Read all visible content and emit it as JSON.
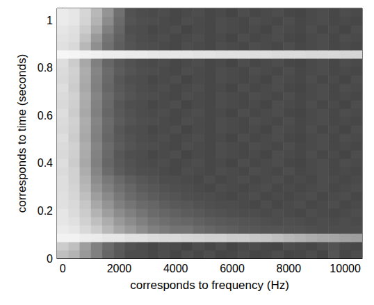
{
  "chart_data": {
    "type": "heatmap",
    "x_label": "corresponds to frequency (Hz)",
    "y_label": "corresponds to time (seconds)",
    "xlim": [
      -200,
      10600
    ],
    "ylim": [
      0,
      1.05
    ],
    "xticks": [
      0,
      2000,
      4000,
      6000,
      8000,
      10000
    ],
    "yticks": [
      0,
      0.2,
      0.4,
      0.6,
      0.8,
      1
    ],
    "grid": false,
    "zlim": [
      0,
      1
    ],
    "x_edges": [
      -200,
      200,
      600,
      1000,
      1400,
      1800,
      2200,
      2600,
      3000,
      3400,
      3800,
      4200,
      4600,
      5000,
      5400,
      5800,
      6200,
      6600,
      7000,
      7400,
      7800,
      8200,
      8600,
      9000,
      9400,
      9800,
      10200,
      10600
    ],
    "y_edges": [
      0,
      0.035,
      0.07,
      0.105,
      0.14,
      0.175,
      0.21,
      0.245,
      0.28,
      0.315,
      0.35,
      0.385,
      0.42,
      0.455,
      0.49,
      0.525,
      0.56,
      0.595,
      0.63,
      0.665,
      0.7,
      0.735,
      0.77,
      0.805,
      0.84,
      0.875,
      0.91,
      0.945,
      0.98,
      1.015,
      1.05
    ],
    "cells": [
      [
        0.75,
        0.7,
        0.6,
        0.5,
        0.4,
        0.35,
        0.3,
        0.3,
        0.28,
        0.3,
        0.27,
        0.3,
        0.28,
        0.3,
        0.27,
        0.28,
        0.3,
        0.27,
        0.28,
        0.3,
        0.27,
        0.28,
        0.3,
        0.27,
        0.33,
        0.28,
        0.3
      ],
      [
        0.8,
        0.75,
        0.62,
        0.5,
        0.42,
        0.36,
        0.32,
        0.3,
        0.28,
        0.3,
        0.29,
        0.27,
        0.3,
        0.28,
        0.3,
        0.27,
        0.29,
        0.3,
        0.28,
        0.27,
        0.3,
        0.29,
        0.28,
        0.3,
        0.32,
        0.29,
        0.28
      ],
      [
        0.95,
        0.95,
        0.93,
        0.92,
        0.9,
        0.9,
        0.88,
        0.88,
        0.86,
        0.85,
        0.85,
        0.84,
        0.83,
        0.82,
        0.82,
        0.8,
        0.8,
        0.78,
        0.77,
        0.75,
        0.72,
        0.7,
        0.68,
        0.66,
        0.65,
        0.63,
        0.62
      ],
      [
        0.92,
        0.9,
        0.85,
        0.8,
        0.72,
        0.65,
        0.6,
        0.55,
        0.5,
        0.48,
        0.45,
        0.45,
        0.42,
        0.4,
        0.38,
        0.37,
        0.35,
        0.34,
        0.33,
        0.33,
        0.32,
        0.32,
        0.31,
        0.3,
        0.3,
        0.3,
        0.3
      ],
      [
        0.9,
        0.88,
        0.82,
        0.75,
        0.68,
        0.6,
        0.55,
        0.5,
        0.46,
        0.43,
        0.41,
        0.4,
        0.38,
        0.36,
        0.35,
        0.34,
        0.33,
        0.32,
        0.31,
        0.3,
        0.31,
        0.3,
        0.29,
        0.3,
        0.29,
        0.3,
        0.29
      ],
      [
        0.9,
        0.86,
        0.8,
        0.7,
        0.62,
        0.55,
        0.5,
        0.46,
        0.42,
        0.4,
        0.38,
        0.36,
        0.35,
        0.33,
        0.32,
        0.31,
        0.3,
        0.3,
        0.29,
        0.3,
        0.29,
        0.28,
        0.3,
        0.29,
        0.28,
        0.29,
        0.3
      ],
      [
        0.88,
        0.85,
        0.78,
        0.66,
        0.58,
        0.5,
        0.46,
        0.42,
        0.4,
        0.37,
        0.35,
        0.34,
        0.32,
        0.31,
        0.3,
        0.3,
        0.29,
        0.28,
        0.3,
        0.28,
        0.29,
        0.3,
        0.28,
        0.29,
        0.3,
        0.28,
        0.29
      ],
      [
        0.88,
        0.84,
        0.75,
        0.62,
        0.54,
        0.47,
        0.42,
        0.39,
        0.36,
        0.34,
        0.33,
        0.31,
        0.3,
        0.3,
        0.29,
        0.28,
        0.29,
        0.3,
        0.28,
        0.29,
        0.28,
        0.29,
        0.3,
        0.28,
        0.29,
        0.3,
        0.28
      ],
      [
        0.87,
        0.83,
        0.72,
        0.58,
        0.5,
        0.44,
        0.4,
        0.36,
        0.34,
        0.32,
        0.31,
        0.3,
        0.29,
        0.28,
        0.3,
        0.29,
        0.28,
        0.29,
        0.3,
        0.28,
        0.29,
        0.28,
        0.29,
        0.3,
        0.28,
        0.29,
        0.3
      ],
      [
        0.87,
        0.82,
        0.7,
        0.55,
        0.47,
        0.41,
        0.37,
        0.34,
        0.32,
        0.3,
        0.3,
        0.29,
        0.28,
        0.3,
        0.28,
        0.29,
        0.3,
        0.28,
        0.29,
        0.3,
        0.28,
        0.29,
        0.28,
        0.3,
        0.29,
        0.28,
        0.29
      ],
      [
        0.86,
        0.82,
        0.68,
        0.52,
        0.42,
        0.36,
        0.33,
        0.31,
        0.3,
        0.29,
        0.28,
        0.3,
        0.29,
        0.28,
        0.3,
        0.29,
        0.28,
        0.3,
        0.29,
        0.28,
        0.3,
        0.28,
        0.29,
        0.3,
        0.28,
        0.29,
        0.28
      ],
      [
        0.87,
        0.8,
        0.66,
        0.5,
        0.4,
        0.35,
        0.32,
        0.3,
        0.29,
        0.3,
        0.28,
        0.29,
        0.3,
        0.28,
        0.29,
        0.27,
        0.3,
        0.28,
        0.29,
        0.3,
        0.28,
        0.27,
        0.29,
        0.3,
        0.28,
        0.3,
        0.29
      ],
      [
        0.85,
        0.81,
        0.67,
        0.51,
        0.41,
        0.34,
        0.31,
        0.3,
        0.28,
        0.29,
        0.3,
        0.27,
        0.29,
        0.28,
        0.3,
        0.29,
        0.28,
        0.29,
        0.27,
        0.3,
        0.29,
        0.28,
        0.3,
        0.28,
        0.29,
        0.27,
        0.3
      ],
      [
        0.86,
        0.82,
        0.68,
        0.52,
        0.42,
        0.36,
        0.33,
        0.31,
        0.3,
        0.29,
        0.28,
        0.3,
        0.29,
        0.28,
        0.3,
        0.29,
        0.28,
        0.3,
        0.29,
        0.28,
        0.3,
        0.28,
        0.29,
        0.3,
        0.28,
        0.29,
        0.28
      ],
      [
        0.87,
        0.8,
        0.66,
        0.5,
        0.4,
        0.35,
        0.32,
        0.3,
        0.29,
        0.3,
        0.28,
        0.29,
        0.3,
        0.28,
        0.29,
        0.27,
        0.3,
        0.28,
        0.29,
        0.3,
        0.28,
        0.27,
        0.29,
        0.3,
        0.28,
        0.3,
        0.29
      ],
      [
        0.85,
        0.81,
        0.67,
        0.51,
        0.41,
        0.34,
        0.31,
        0.3,
        0.28,
        0.29,
        0.3,
        0.27,
        0.29,
        0.28,
        0.3,
        0.29,
        0.28,
        0.29,
        0.27,
        0.3,
        0.29,
        0.28,
        0.3,
        0.28,
        0.29,
        0.27,
        0.3
      ],
      [
        0.86,
        0.82,
        0.68,
        0.52,
        0.42,
        0.36,
        0.33,
        0.31,
        0.3,
        0.29,
        0.28,
        0.3,
        0.29,
        0.28,
        0.3,
        0.29,
        0.28,
        0.3,
        0.29,
        0.28,
        0.3,
        0.28,
        0.29,
        0.3,
        0.28,
        0.29,
        0.28
      ],
      [
        0.87,
        0.8,
        0.66,
        0.5,
        0.4,
        0.35,
        0.32,
        0.3,
        0.29,
        0.3,
        0.28,
        0.29,
        0.3,
        0.28,
        0.29,
        0.27,
        0.3,
        0.28,
        0.29,
        0.3,
        0.28,
        0.27,
        0.29,
        0.3,
        0.28,
        0.3,
        0.29
      ],
      [
        0.85,
        0.81,
        0.67,
        0.51,
        0.41,
        0.34,
        0.31,
        0.3,
        0.28,
        0.29,
        0.3,
        0.27,
        0.29,
        0.28,
        0.3,
        0.29,
        0.28,
        0.29,
        0.27,
        0.3,
        0.29,
        0.28,
        0.3,
        0.28,
        0.29,
        0.27,
        0.3
      ],
      [
        0.86,
        0.82,
        0.68,
        0.52,
        0.42,
        0.36,
        0.33,
        0.31,
        0.3,
        0.29,
        0.28,
        0.3,
        0.29,
        0.28,
        0.3,
        0.29,
        0.28,
        0.3,
        0.29,
        0.28,
        0.3,
        0.28,
        0.29,
        0.3,
        0.28,
        0.29,
        0.28
      ],
      [
        0.87,
        0.8,
        0.66,
        0.5,
        0.4,
        0.35,
        0.32,
        0.3,
        0.29,
        0.3,
        0.28,
        0.29,
        0.3,
        0.28,
        0.29,
        0.27,
        0.3,
        0.28,
        0.29,
        0.3,
        0.28,
        0.27,
        0.29,
        0.3,
        0.28,
        0.3,
        0.29
      ],
      [
        0.85,
        0.81,
        0.67,
        0.51,
        0.41,
        0.34,
        0.31,
        0.3,
        0.28,
        0.29,
        0.3,
        0.27,
        0.29,
        0.28,
        0.3,
        0.29,
        0.28,
        0.29,
        0.27,
        0.3,
        0.29,
        0.28,
        0.3,
        0.28,
        0.29,
        0.27,
        0.3
      ],
      [
        0.86,
        0.82,
        0.68,
        0.52,
        0.42,
        0.36,
        0.33,
        0.31,
        0.3,
        0.29,
        0.28,
        0.3,
        0.29,
        0.28,
        0.3,
        0.29,
        0.28,
        0.3,
        0.29,
        0.28,
        0.3,
        0.28,
        0.29,
        0.3,
        0.28,
        0.29,
        0.28
      ],
      [
        0.87,
        0.8,
        0.66,
        0.5,
        0.4,
        0.35,
        0.32,
        0.3,
        0.29,
        0.3,
        0.28,
        0.29,
        0.3,
        0.28,
        0.29,
        0.27,
        0.3,
        0.28,
        0.29,
        0.3,
        0.28,
        0.27,
        0.29,
        0.3,
        0.28,
        0.3,
        0.29
      ],
      [
        0.97,
        0.96,
        0.95,
        0.94,
        0.93,
        0.93,
        0.92,
        0.92,
        0.91,
        0.9,
        0.9,
        0.9,
        0.89,
        0.89,
        0.88,
        0.88,
        0.88,
        0.87,
        0.87,
        0.86,
        0.86,
        0.86,
        0.85,
        0.85,
        0.85,
        0.84,
        0.84
      ],
      [
        0.88,
        0.85,
        0.72,
        0.56,
        0.44,
        0.37,
        0.33,
        0.31,
        0.3,
        0.29,
        0.28,
        0.3,
        0.29,
        0.28,
        0.3,
        0.29,
        0.28,
        0.3,
        0.29,
        0.28,
        0.3,
        0.28,
        0.29,
        0.3,
        0.28,
        0.29,
        0.28
      ],
      [
        0.89,
        0.87,
        0.76,
        0.6,
        0.46,
        0.38,
        0.32,
        0.3,
        0.29,
        0.3,
        0.28,
        0.29,
        0.3,
        0.28,
        0.29,
        0.27,
        0.3,
        0.28,
        0.29,
        0.3,
        0.28,
        0.27,
        0.29,
        0.3,
        0.28,
        0.3,
        0.29
      ],
      [
        0.9,
        0.88,
        0.8,
        0.66,
        0.5,
        0.4,
        0.31,
        0.3,
        0.28,
        0.29,
        0.3,
        0.27,
        0.29,
        0.28,
        0.3,
        0.29,
        0.28,
        0.29,
        0.27,
        0.3,
        0.29,
        0.28,
        0.3,
        0.28,
        0.29,
        0.27,
        0.3
      ],
      [
        0.92,
        0.9,
        0.83,
        0.7,
        0.55,
        0.42,
        0.33,
        0.31,
        0.3,
        0.29,
        0.28,
        0.3,
        0.29,
        0.28,
        0.3,
        0.29,
        0.28,
        0.3,
        0.29,
        0.28,
        0.3,
        0.28,
        0.29,
        0.3,
        0.28,
        0.29,
        0.28
      ],
      [
        0.92,
        0.9,
        0.84,
        0.72,
        0.58,
        0.44,
        0.32,
        0.3,
        0.29,
        0.3,
        0.28,
        0.29,
        0.3,
        0.28,
        0.29,
        0.27,
        0.3,
        0.28,
        0.29,
        0.3,
        0.28,
        0.27,
        0.29,
        0.3,
        0.28,
        0.3,
        0.29
      ]
    ]
  }
}
